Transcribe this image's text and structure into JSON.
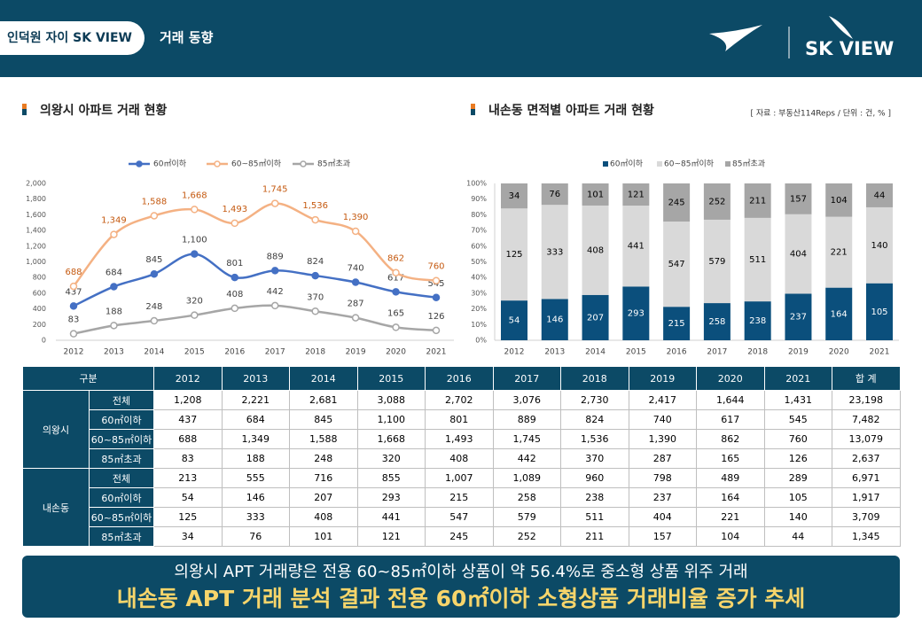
{
  "header": {
    "badge": "인덕원 자이 SK VIEW",
    "title": "거래 동향",
    "logo": "SK VIEW"
  },
  "source": "[ 자료 : 부동산114Reps / 단위 : 건, % ]",
  "chart_data": [
    {
      "type": "line",
      "title": "의왕시 아파트 거래 현황",
      "categories": [
        "2012",
        "2013",
        "2014",
        "2015",
        "2016",
        "2017",
        "2018",
        "2019",
        "2020",
        "2021"
      ],
      "ylim": [
        0,
        2000
      ],
      "yticks": [
        0,
        200,
        400,
        600,
        800,
        {
          "value": 1000,
          "label": "1,000"
        },
        {
          "value": 1200,
          "label": "1,200"
        },
        {
          "value": 1400,
          "label": "1,400"
        },
        {
          "value": 1600,
          "label": "1,600"
        },
        {
          "value": 1800,
          "label": "1,800"
        },
        {
          "value": 2000,
          "label": "2,000"
        }
      ],
      "grid": false,
      "legend": "top",
      "series": [
        {
          "name": "60㎡이하",
          "color": "#4470c4",
          "label_color": "#404040",
          "values": [
            437,
            684,
            845,
            1100,
            801,
            889,
            824,
            740,
            617,
            545
          ],
          "value_labels": [
            "437",
            "684",
            "845",
            "1,100",
            "801",
            "889",
            "824",
            "740",
            "617",
            "545"
          ]
        },
        {
          "name": "60~85㎡이하",
          "color": "#f4b183",
          "label_color": "#c55a11",
          "values": [
            688,
            1349,
            1588,
            1668,
            1493,
            1745,
            1536,
            1390,
            862,
            760
          ],
          "value_labels": [
            "688",
            "1,349",
            "1,588",
            "1,668",
            "1,493",
            "1,745",
            "1,536",
            "1,390",
            "862",
            "760"
          ]
        },
        {
          "name": "85㎡초과",
          "color": "#a6a6a6",
          "label_color": "#404040",
          "values": [
            83,
            188,
            248,
            320,
            408,
            442,
            370,
            287,
            165,
            126
          ],
          "value_labels": [
            "83",
            "188",
            "248",
            "320",
            "408",
            "442",
            "370",
            "287",
            "165",
            "126"
          ]
        }
      ]
    },
    {
      "type": "stacked-bar-100",
      "title": "내손동 면적별 아파트 거래 현황",
      "categories": [
        "2012",
        "2013",
        "2014",
        "2015",
        "2016",
        "2017",
        "2018",
        "2019",
        "2020",
        "2021"
      ],
      "ylim": [
        0,
        100
      ],
      "yticks": [
        {
          "value": 0,
          "label": "0%"
        },
        {
          "value": 10,
          "label": "10%"
        },
        {
          "value": 20,
          "label": "20%"
        },
        {
          "value": 30,
          "label": "30%"
        },
        {
          "value": 40,
          "label": "40%"
        },
        {
          "value": 50,
          "label": "50%"
        },
        {
          "value": 60,
          "label": "60%"
        },
        {
          "value": 70,
          "label": "70%"
        },
        {
          "value": 80,
          "label": "80%"
        },
        {
          "value": 90,
          "label": "90%"
        },
        {
          "value": 100,
          "label": "100%"
        }
      ],
      "grid": false,
      "legend": "top",
      "series": [
        {
          "name": "60㎡이하",
          "color": "#0b4f7c",
          "label_color": "#ffffff",
          "values": [
            54,
            146,
            207,
            293,
            215,
            258,
            238,
            237,
            164,
            105
          ]
        },
        {
          "name": "60~85㎡이하",
          "color": "#d9d9d9",
          "label_color": "#000000",
          "values": [
            125,
            333,
            408,
            441,
            547,
            579,
            511,
            404,
            221,
            140
          ]
        },
        {
          "name": "85㎡초과",
          "color": "#a6a6a6",
          "label_color": "#000000",
          "values": [
            34,
            76,
            101,
            121,
            245,
            252,
            211,
            157,
            104,
            44
          ]
        }
      ]
    }
  ],
  "table": {
    "header": [
      "구분",
      "2012",
      "2013",
      "2014",
      "2015",
      "2016",
      "2017",
      "2018",
      "2019",
      "2020",
      "2021",
      "합 계"
    ],
    "groups": [
      {
        "name": "의왕시",
        "rows": [
          {
            "label": "전체",
            "cells": [
              "1,208",
              "2,221",
              "2,681",
              "3,088",
              "2,702",
              "3,076",
              "2,730",
              "2,417",
              "1,644",
              "1,431",
              "23,198"
            ]
          },
          {
            "label": "60㎡이하",
            "cells": [
              "437",
              "684",
              "845",
              "1,100",
              "801",
              "889",
              "824",
              "740",
              "617",
              "545",
              "7,482"
            ]
          },
          {
            "label": "60~85㎡이하",
            "cells": [
              "688",
              "1,349",
              "1,588",
              "1,668",
              "1,493",
              "1,745",
              "1,536",
              "1,390",
              "862",
              "760",
              "13,079"
            ]
          },
          {
            "label": "85㎡초과",
            "cells": [
              "83",
              "188",
              "248",
              "320",
              "408",
              "442",
              "370",
              "287",
              "165",
              "126",
              "2,637"
            ]
          }
        ]
      },
      {
        "name": "내손동",
        "rows": [
          {
            "label": "전체",
            "cells": [
              "213",
              "555",
              "716",
              "855",
              "1,007",
              "1,089",
              "960",
              "798",
              "489",
              "289",
              "6,971"
            ]
          },
          {
            "label": "60㎡이하",
            "cells": [
              "54",
              "146",
              "207",
              "293",
              "215",
              "258",
              "238",
              "237",
              "164",
              "105",
              "1,917"
            ]
          },
          {
            "label": "60~85㎡이하",
            "cells": [
              "125",
              "333",
              "408",
              "441",
              "547",
              "579",
              "511",
              "404",
              "221",
              "140",
              "3,709"
            ]
          },
          {
            "label": "85㎡초과",
            "cells": [
              "34",
              "76",
              "101",
              "121",
              "245",
              "252",
              "211",
              "157",
              "104",
              "44",
              "1,345"
            ]
          }
        ]
      }
    ]
  },
  "footer": {
    "line1": "의왕시 APT 거래량은 전용 60~85㎡이하 상품이 약 56.4%로 중소형 상품 위주 거래",
    "line2": "내손동 APT 거래 분석 결과 전용 60㎡이하 소형상품 거래비율 증가 추세"
  }
}
